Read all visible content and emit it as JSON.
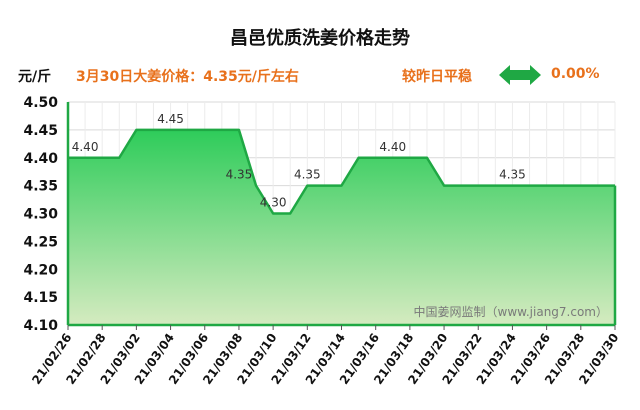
{
  "title": "昌邑优质洗姜价格走势",
  "unit": "元/斤",
  "price_info": "3月30日大姜价格：4.35元/斤左右",
  "compare_label": "较昨日平稳",
  "change_pct": "0.00%",
  "watermark": "中国姜网监制（www.jiang7.com）",
  "colors": {
    "line": "#1fa844",
    "fill_top": "#2ecc5a",
    "fill_bottom": "#d5ebc0",
    "accent": "#e8711c",
    "arrow": "#1fa844"
  },
  "icons": {
    "change_indicator": "double-arrow-icon"
  },
  "chart_data": {
    "type": "area",
    "ylim": [
      4.1,
      4.5
    ],
    "yticks": [
      "4.10",
      "4.15",
      "4.20",
      "4.25",
      "4.30",
      "4.35",
      "4.40",
      "4.45",
      "4.50"
    ],
    "categories": [
      "21/02/26",
      "21/02/28",
      "21/03/02",
      "21/03/04",
      "21/03/06",
      "21/03/08",
      "21/03/10",
      "21/03/12",
      "21/03/14",
      "21/03/16",
      "21/03/18",
      "21/03/20",
      "21/03/22",
      "21/03/24",
      "21/03/26",
      "21/03/28",
      "21/03/30"
    ],
    "points": [
      {
        "date": "21/02/26",
        "value": 4.4
      },
      {
        "date": "21/03/01",
        "value": 4.4
      },
      {
        "date": "21/03/02",
        "value": 4.45
      },
      {
        "date": "21/03/07",
        "value": 4.45
      },
      {
        "date": "21/03/08",
        "value": 4.45
      },
      {
        "date": "21/03/09",
        "value": 4.35
      },
      {
        "date": "21/03/10",
        "value": 4.3
      },
      {
        "date": "21/03/11",
        "value": 4.3
      },
      {
        "date": "21/03/12",
        "value": 4.35
      },
      {
        "date": "21/03/14",
        "value": 4.35
      },
      {
        "date": "21/03/15",
        "value": 4.4
      },
      {
        "date": "21/03/19",
        "value": 4.4
      },
      {
        "date": "21/03/20",
        "value": 4.35
      },
      {
        "date": "21/03/30",
        "value": 4.35
      }
    ],
    "data_labels": [
      {
        "date": "21/02/27",
        "value": 4.4,
        "text": "4.40"
      },
      {
        "date": "21/03/04",
        "value": 4.45,
        "text": "4.45"
      },
      {
        "date": "21/03/08",
        "value": 4.35,
        "text": "4.35"
      },
      {
        "date": "21/03/10",
        "value": 4.3,
        "text": "4.30"
      },
      {
        "date": "21/03/12",
        "value": 4.35,
        "text": "4.35"
      },
      {
        "date": "21/03/17",
        "value": 4.4,
        "text": "4.40"
      },
      {
        "date": "21/03/24",
        "value": 4.35,
        "text": "4.35"
      }
    ],
    "grid": true
  }
}
